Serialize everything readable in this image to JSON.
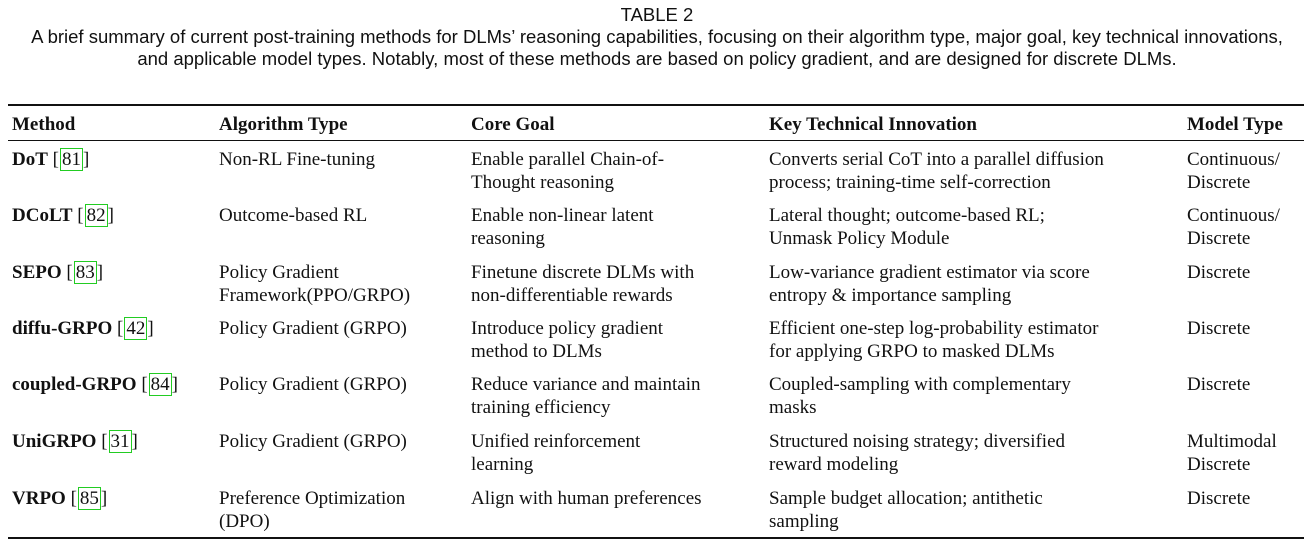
{
  "caption": {
    "label": "TABLE 2",
    "text": "A brief summary of current post-training methods for DLMs’ reasoning capabilities, focusing on their algorithm type, major goal, key technical innovations, and applicable model types. Notably, most of these methods are based on policy gradient, and are designed for discrete DLMs."
  },
  "table": {
    "headers": [
      "Method",
      "Algorithm Type",
      "Core Goal",
      "Key Technical Innovation",
      "Model Type"
    ],
    "rows": [
      {
        "method": "DoT",
        "ref": "81",
        "algorithm": [
          "Non-RL Fine-tuning"
        ],
        "goal": [
          "Enable parallel Chain-of-",
          "Thought reasoning"
        ],
        "innovation": [
          "Converts serial CoT into a parallel diffusion",
          "process; training-time self-correction"
        ],
        "model_type": [
          "Continuous/",
          "Discrete"
        ]
      },
      {
        "method": "DCoLT",
        "ref": "82",
        "algorithm": [
          "Outcome-based RL"
        ],
        "goal": [
          "Enable non-linear latent",
          "reasoning"
        ],
        "innovation": [
          "Lateral thought; outcome-based RL;",
          "Unmask Policy Module"
        ],
        "model_type": [
          "Continuous/",
          "Discrete"
        ]
      },
      {
        "method": "SEPO",
        "ref": "83",
        "algorithm": [
          "Policy Gradient",
          "Framework(PPO/GRPO)"
        ],
        "goal": [
          "Finetune discrete DLMs with",
          "non-differentiable rewards"
        ],
        "innovation": [
          "Low-variance gradient estimator via score",
          "entropy & importance sampling"
        ],
        "model_type": [
          "Discrete"
        ]
      },
      {
        "method": "diffu-GRPO",
        "ref": "42",
        "algorithm": [
          "Policy Gradient (GRPO)"
        ],
        "goal": [
          "Introduce policy gradient",
          "method to DLMs"
        ],
        "innovation": [
          "Efficient one-step log-probability estimator",
          "for applying GRPO to masked DLMs"
        ],
        "model_type": [
          "Discrete"
        ]
      },
      {
        "method": "coupled-GRPO",
        "ref": "84",
        "algorithm": [
          "Policy Gradient (GRPO)"
        ],
        "goal": [
          "Reduce variance and maintain",
          "training efficiency"
        ],
        "innovation": [
          "Coupled-sampling with complementary",
          "masks"
        ],
        "model_type": [
          "Discrete"
        ]
      },
      {
        "method": "UniGRPO",
        "ref": "31",
        "algorithm": [
          "Policy Gradient (GRPO)"
        ],
        "goal": [
          "Unified reinforcement",
          "learning"
        ],
        "innovation": [
          "Structured noising strategy; diversified",
          "reward modeling"
        ],
        "model_type": [
          "Multimodal",
          "Discrete"
        ]
      },
      {
        "method": "VRPO",
        "ref": "85",
        "algorithm": [
          "Preference Optimization",
          "(DPO)"
        ],
        "goal": [
          "Align with human preferences"
        ],
        "innovation": [
          "Sample budget allocation; antithetic",
          "sampling"
        ],
        "model_type": [
          "Discrete"
        ]
      }
    ]
  }
}
